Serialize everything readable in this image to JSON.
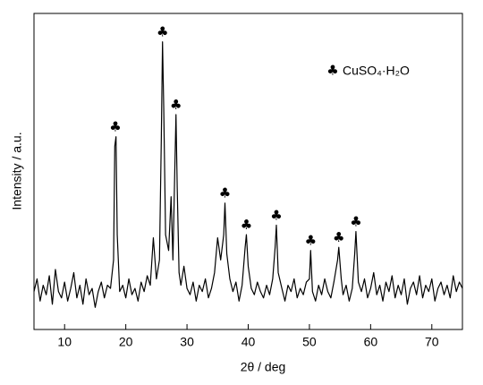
{
  "chart_data": {
    "type": "line",
    "xlabel": "2θ / deg",
    "ylabel": "Intensity / a.u.",
    "color": "#000000",
    "xlim": [
      5,
      75
    ],
    "ylim": [
      0,
      100
    ],
    "xticks": [
      10,
      20,
      30,
      40,
      50,
      60,
      70
    ],
    "x": [
      5,
      5.5,
      6,
      6.5,
      7,
      7.5,
      8,
      8.5,
      9,
      9.5,
      10,
      10.5,
      11,
      11.5,
      12,
      12.5,
      13,
      13.5,
      14,
      14.5,
      15,
      15.5,
      16,
      16.5,
      17,
      17.5,
      18,
      18.2,
      18.4,
      18.6,
      19,
      19.5,
      20,
      20.5,
      21,
      21.5,
      22,
      22.5,
      23,
      23.5,
      24,
      24.5,
      25,
      25.5,
      25.8,
      26,
      26.2,
      26.5,
      27,
      27.4,
      27.7,
      28,
      28.2,
      28.4,
      28.7,
      29,
      29.5,
      30,
      30.5,
      31,
      31.5,
      32,
      32.5,
      33,
      33.5,
      34,
      34.5,
      35,
      35.5,
      36,
      36.2,
      36.5,
      37,
      37.5,
      38,
      38.5,
      39,
      39.5,
      39.7,
      40,
      40.5,
      41,
      41.5,
      42,
      42.5,
      43,
      43.5,
      44,
      44.4,
      44.6,
      44.9,
      45.5,
      46,
      46.5,
      47,
      47.5,
      48,
      48.5,
      49,
      49.5,
      50,
      50.2,
      50.5,
      51,
      51.5,
      52,
      52.5,
      53,
      53.5,
      54,
      54.6,
      54.8,
      55.2,
      55.5,
      56,
      56.5,
      57,
      57.4,
      57.6,
      58,
      58.5,
      59,
      59.5,
      60,
      60.5,
      61,
      61.5,
      62,
      62.5,
      63,
      63.5,
      64,
      64.5,
      65,
      65.5,
      66,
      66.5,
      67,
      67.5,
      68,
      68.5,
      69,
      69.5,
      70,
      70.5,
      71,
      71.5,
      72,
      72.5,
      73,
      73.5,
      74,
      74.5,
      75
    ],
    "values": [
      12,
      16,
      9,
      14,
      11,
      17,
      8,
      19,
      12,
      10,
      15,
      9,
      13,
      18,
      10,
      14,
      8,
      16,
      11,
      13,
      7,
      12,
      15,
      10,
      14,
      13,
      22,
      58,
      61,
      30,
      12,
      14,
      10,
      16,
      11,
      13,
      9,
      15,
      12,
      17,
      14,
      29,
      16,
      22,
      60,
      91,
      70,
      30,
      25,
      42,
      22,
      50,
      68,
      45,
      18,
      14,
      20,
      13,
      11,
      15,
      9,
      14,
      12,
      16,
      10,
      13,
      18,
      29,
      22,
      30,
      40,
      24,
      16,
      12,
      15,
      9,
      14,
      26,
      30,
      20,
      13,
      11,
      15,
      12,
      10,
      14,
      11,
      16,
      26,
      33,
      18,
      13,
      9,
      14,
      12,
      16,
      10,
      13,
      11,
      15,
      16,
      25,
      12,
      9,
      14,
      11,
      16,
      12,
      10,
      15,
      22,
      26,
      16,
      11,
      14,
      9,
      13,
      24,
      31,
      15,
      12,
      16,
      10,
      13,
      18,
      11,
      14,
      9,
      15,
      12,
      17,
      10,
      14,
      11,
      16,
      8,
      13,
      15,
      11,
      17,
      10,
      14,
      12,
      16,
      9,
      13,
      15,
      11,
      14,
      10,
      17,
      12,
      15,
      13
    ],
    "annotations": [
      {
        "text": "♣",
        "x": 18.3,
        "y": 64
      },
      {
        "text": "♣",
        "x": 26,
        "y": 94
      },
      {
        "text": "♣",
        "x": 28.2,
        "y": 71
      },
      {
        "text": "♣",
        "x": 36.2,
        "y": 43
      },
      {
        "text": "♣",
        "x": 39.7,
        "y": 33
      },
      {
        "text": "♣",
        "x": 44.6,
        "y": 36
      },
      {
        "text": "♣",
        "x": 50.2,
        "y": 28
      },
      {
        "text": "♣",
        "x": 54.8,
        "y": 29
      },
      {
        "text": "♣",
        "x": 57.6,
        "y": 34
      }
    ],
    "legend": {
      "symbol": "♣",
      "label": "CuSO₄·H₂O"
    }
  }
}
